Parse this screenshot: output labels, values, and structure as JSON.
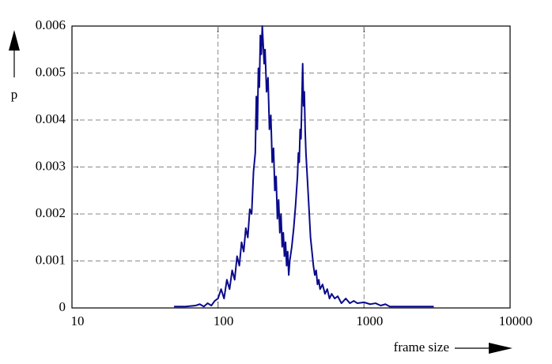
{
  "chart_data": {
    "type": "line",
    "x_label": "frame size",
    "y_label": "p",
    "xscale": "log",
    "grid": true,
    "color": "#0a0a8c",
    "xlim": [
      10,
      10000
    ],
    "xticks": [
      10,
      100,
      1000,
      10000
    ],
    "ylim": [
      0,
      0.006
    ],
    "yticks": [
      0,
      0.001,
      0.002,
      0.003,
      0.004,
      0.005,
      0.006
    ],
    "x": [
      50,
      60,
      70,
      75,
      80,
      85,
      90,
      95,
      100,
      105,
      110,
      115,
      120,
      125,
      130,
      135,
      140,
      145,
      150,
      155,
      160,
      165,
      170,
      175,
      180,
      183,
      186,
      189,
      192,
      195,
      198,
      201,
      204,
      207,
      210,
      215,
      220,
      225,
      230,
      235,
      240,
      245,
      250,
      255,
      260,
      265,
      270,
      275,
      280,
      285,
      290,
      295,
      300,
      305,
      310,
      320,
      330,
      340,
      350,
      355,
      360,
      365,
      370,
      375,
      380,
      385,
      390,
      395,
      400,
      410,
      420,
      430,
      440,
      450,
      460,
      470,
      480,
      490,
      500,
      520,
      540,
      560,
      580,
      600,
      630,
      660,
      700,
      750,
      800,
      850,
      900,
      1000,
      1100,
      1200,
      1300,
      1400,
      1500,
      2000,
      3000
    ],
    "values": [
      3e-05,
      3e-05,
      5e-05,
      8e-05,
      3e-05,
      0.0001,
      5e-05,
      0.00015,
      0.0002,
      0.0004,
      0.0002,
      0.0006,
      0.0004,
      0.0008,
      0.0006,
      0.0011,
      0.0009,
      0.0014,
      0.0012,
      0.0017,
      0.0015,
      0.0021,
      0.002,
      0.0029,
      0.0033,
      0.0045,
      0.0038,
      0.0051,
      0.0047,
      0.0058,
      0.0054,
      0.006,
      0.0056,
      0.0052,
      0.0055,
      0.0046,
      0.0049,
      0.0038,
      0.0041,
      0.0031,
      0.0034,
      0.0025,
      0.0028,
      0.0019,
      0.0023,
      0.0016,
      0.002,
      0.0013,
      0.0016,
      0.0011,
      0.0014,
      0.0009,
      0.0012,
      0.0007,
      0.001,
      0.0013,
      0.0017,
      0.0022,
      0.0028,
      0.0033,
      0.0031,
      0.0038,
      0.0036,
      0.0044,
      0.0052,
      0.0043,
      0.0046,
      0.0038,
      0.0033,
      0.0027,
      0.0021,
      0.0015,
      0.0012,
      0.0009,
      0.0007,
      0.0008,
      0.0005,
      0.0006,
      0.0004,
      0.0005,
      0.0003,
      0.0004,
      0.0002,
      0.0003,
      0.0002,
      0.00025,
      0.0001,
      0.0002,
      0.0001,
      0.00015,
      0.0001,
      0.00012,
      8e-05,
      0.0001,
      5e-05,
      8e-05,
      3e-05,
      3e-05,
      3e-05
    ]
  }
}
